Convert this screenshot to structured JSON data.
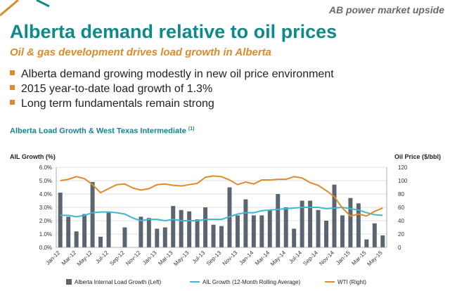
{
  "header": {
    "section_label": "AB power market upside",
    "title": "Alberta demand relative to oil prices",
    "subtitle": "Oil & gas development drives load growth in Alberta"
  },
  "bullets": [
    "Alberta demand growing modestly in new oil price environment",
    "2015 year-to-date load growth of 1.3%",
    "Long term fundamentals remain strong"
  ],
  "chart_heading": {
    "text": "Alberta Load Growth & West Texas Intermediate",
    "footnote": "(1)"
  },
  "colors": {
    "teal": "#0f8a8a",
    "orange": "#d98c2b",
    "bars": "#5b6570",
    "line_ail": "#3db8d0",
    "line_wti": "#e08a2c"
  },
  "chart_data": {
    "type": "bar",
    "y_left_label": "AIL Growth (%)",
    "y_right_label": "Oil Price ($/bbl)",
    "y_left_range": [
      0,
      6
    ],
    "y_left_ticks": [
      "0.0%",
      "1.0%",
      "2.0%",
      "3.0%",
      "4.0%",
      "5.0%",
      "6.0%"
    ],
    "y_right_range": [
      0,
      120
    ],
    "y_right_ticks": [
      "0",
      "20",
      "40",
      "60",
      "80",
      "100",
      "120"
    ],
    "grid": true,
    "legend_position": "bottom",
    "months": [
      "Jan-12",
      "Feb-12",
      "Mar-12",
      "Apr-12",
      "May-12",
      "Jun-12",
      "Jul-12",
      "Aug-12",
      "Sep-12",
      "Oct-12",
      "Nov-12",
      "Dec-12",
      "Jan-13",
      "Feb-13",
      "Mar-13",
      "Apr-13",
      "May-13",
      "Jun-13",
      "Jul-13",
      "Aug-13",
      "Sep-13",
      "Oct-13",
      "Nov-13",
      "Dec-13",
      "Jan-14",
      "Feb-14",
      "Mar-14",
      "Apr-14",
      "May-14",
      "Jun-14",
      "Jul-14",
      "Aug-14",
      "Sep-14",
      "Oct-14",
      "Nov-14",
      "Dec-14",
      "Jan-15",
      "Feb-15",
      "Mar-15",
      "Apr-15",
      "May-15"
    ],
    "x_tick_labels": [
      "Jan-12",
      "Mar-12",
      "May-12",
      "Jul-12",
      "Sep-12",
      "Nov-12",
      "Jan-13",
      "Mar-13",
      "May-13",
      "Jul-13",
      "Sep-13",
      "Nov-13",
      "Jan-14",
      "Mar-14",
      "May-14",
      "Jul-14",
      "Sep-14",
      "Nov-14",
      "Jan-15",
      "Mar-15",
      "May-15"
    ],
    "series": [
      {
        "name": "Alberta Internal Load Growth (Left)",
        "type": "bar",
        "axis": "left",
        "values": [
          4.1,
          2.3,
          1.2,
          2.5,
          4.9,
          0.8,
          2.6,
          0.0,
          1.5,
          0.0,
          2.3,
          2.2,
          1.4,
          1.5,
          3.1,
          2.8,
          2.7,
          2.1,
          3.0,
          1.7,
          1.6,
          4.5,
          2.4,
          3.6,
          2.4,
          2.4,
          2.8,
          4.0,
          3.0,
          1.4,
          3.5,
          3.5,
          2.8,
          2.0,
          4.7,
          2.4,
          3.7,
          3.3,
          0.6,
          1.8,
          0.9
        ]
      },
      {
        "name": "AIL Growth (12-Month Rolling Average)",
        "type": "line",
        "axis": "left",
        "values": [
          2.4,
          2.4,
          2.3,
          2.4,
          2.6,
          2.65,
          2.65,
          2.6,
          2.5,
          2.2,
          2.0,
          2.1,
          2.1,
          2.0,
          2.1,
          2.0,
          2.0,
          2.0,
          2.1,
          2.1,
          2.1,
          2.3,
          2.5,
          2.6,
          2.6,
          2.75,
          2.8,
          2.85,
          2.9,
          2.95,
          3.0,
          3.0,
          3.0,
          2.9,
          2.95,
          3.0,
          2.9,
          2.8,
          2.6,
          2.45,
          2.4
        ]
      },
      {
        "name": "WTI (Right)",
        "type": "line",
        "axis": "right",
        "values": [
          100,
          102,
          106,
          103,
          94,
          82,
          88,
          94,
          95,
          89,
          86,
          88,
          94,
          95,
          93,
          92,
          94,
          96,
          105,
          107,
          106,
          101,
          94,
          98,
          95,
          101,
          101,
          102,
          102,
          106,
          104,
          97,
          93,
          85,
          76,
          59,
          47,
          50,
          47,
          54,
          59
        ]
      }
    ]
  }
}
